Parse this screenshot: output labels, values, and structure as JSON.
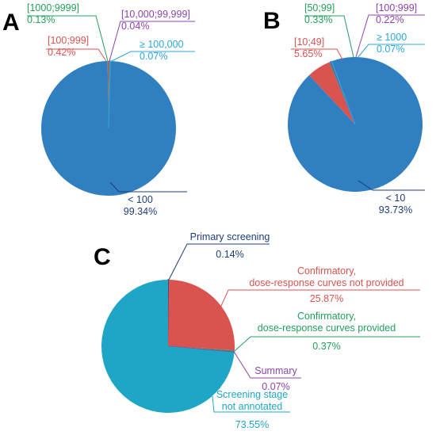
{
  "colors": {
    "blue": "#2f7fc1",
    "red": "#d9534f",
    "green": "#23a05a",
    "purple": "#8e44ad",
    "lightblue": "#2aa6e0",
    "navy": "#1f3d7a",
    "cyan": "#1fa6c6"
  },
  "chart_data": [
    {
      "panel": "A",
      "type": "pie",
      "slices": [
        {
          "label": "< 100",
          "value": 99.34,
          "value_text": "99.34%",
          "color": "#2f7fc1",
          "text_color": "#1f3d7a"
        },
        {
          "label": "[100;999]",
          "value": 0.42,
          "value_text": "0.42%",
          "color": "#d9534f",
          "text_color": "#d9534f"
        },
        {
          "label": "[1000;9999]",
          "value": 0.13,
          "value_text": "0.13%",
          "color": "#23a05a",
          "text_color": "#23a05a"
        },
        {
          "label": "[10,000;99,999]",
          "value": 0.04,
          "value_text": "0.04%",
          "color": "#8e44ad",
          "text_color": "#8e44ad"
        },
        {
          "label": "≥ 100,000",
          "value": 0.07,
          "value_text": "0.07%",
          "color": "#2aa6e0",
          "text_color": "#2aa6e0"
        }
      ]
    },
    {
      "panel": "B",
      "type": "pie",
      "slices": [
        {
          "label": "< 10",
          "value": 93.73,
          "value_text": "93.73%",
          "color": "#2f7fc1",
          "text_color": "#1f3d7a"
        },
        {
          "label": "[10;49]",
          "value": 5.65,
          "value_text": "5.65%",
          "color": "#d9534f",
          "text_color": "#d9534f"
        },
        {
          "label": "[50;99]",
          "value": 0.33,
          "value_text": "0.33%",
          "color": "#23a05a",
          "text_color": "#23a05a"
        },
        {
          "label": "[100;999]",
          "value": 0.22,
          "value_text": "0.22%",
          "color": "#8e44ad",
          "text_color": "#8e44ad"
        },
        {
          "label": "≥ 1000",
          "value": 0.07,
          "value_text": "0.07%",
          "color": "#2aa6e0",
          "text_color": "#2aa6e0"
        }
      ]
    },
    {
      "panel": "C",
      "type": "pie",
      "slices": [
        {
          "label": "Primary screening",
          "value": 0.14,
          "value_text": "0.14%",
          "color": "#1f3d7a",
          "text_color": "#1f3d7a"
        },
        {
          "label": "Confirmatory,\ndose-response curves not provided",
          "value": 25.87,
          "value_text": "25.87%",
          "color": "#d9534f",
          "text_color": "#d9534f"
        },
        {
          "label": "Confirmatory,\ndose-response curves provided",
          "value": 0.37,
          "value_text": "0.37%",
          "color": "#23a05a",
          "text_color": "#23a05a"
        },
        {
          "label": "Summary",
          "value": 0.07,
          "value_text": "0.07%",
          "color": "#8e44ad",
          "text_color": "#8e44ad"
        },
        {
          "label": "Screening stage\nnot annotated",
          "value": 73.55,
          "value_text": "73.55%",
          "color": "#1fa6c6",
          "text_color": "#1fa6c6"
        }
      ]
    }
  ]
}
